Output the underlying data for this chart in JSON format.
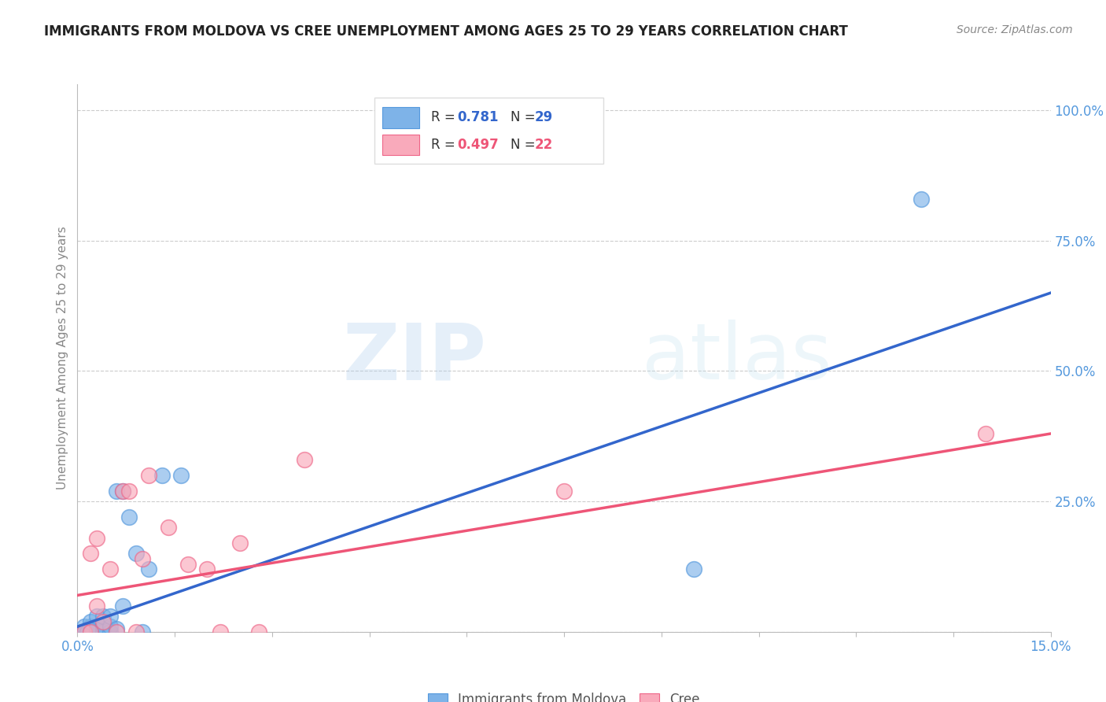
{
  "title": "IMMIGRANTS FROM MOLDOVA VS CREE UNEMPLOYMENT AMONG AGES 25 TO 29 YEARS CORRELATION CHART",
  "source": "Source: ZipAtlas.com",
  "ylabel": "Unemployment Among Ages 25 to 29 years",
  "xlim": [
    0.0,
    0.15
  ],
  "ylim": [
    0.0,
    1.05
  ],
  "xticks": [
    0.0,
    0.015,
    0.03,
    0.045,
    0.06,
    0.075,
    0.09,
    0.105,
    0.12,
    0.135,
    0.15
  ],
  "xtick_labels": [
    "0.0%",
    "",
    "",
    "",
    "",
    "",
    "",
    "",
    "",
    "",
    "15.0%"
  ],
  "yticks": [
    0.0,
    0.25,
    0.5,
    0.75,
    1.0
  ],
  "ytick_labels": [
    "",
    "25.0%",
    "50.0%",
    "75.0%",
    "100.0%"
  ],
  "blue_scatter_x": [
    0.0005,
    0.001,
    0.001,
    0.0015,
    0.002,
    0.002,
    0.002,
    0.003,
    0.003,
    0.003,
    0.003,
    0.004,
    0.004,
    0.004,
    0.005,
    0.005,
    0.005,
    0.006,
    0.006,
    0.007,
    0.007,
    0.008,
    0.009,
    0.01,
    0.011,
    0.013,
    0.016,
    0.095,
    0.13
  ],
  "blue_scatter_y": [
    0.0,
    0.0,
    0.01,
    0.0,
    0.0,
    0.01,
    0.02,
    0.0,
    0.005,
    0.01,
    0.03,
    0.0,
    0.01,
    0.03,
    0.0,
    0.01,
    0.03,
    0.005,
    0.27,
    0.05,
    0.27,
    0.22,
    0.15,
    0.0,
    0.12,
    0.3,
    0.3,
    0.12,
    0.83
  ],
  "pink_scatter_x": [
    0.001,
    0.002,
    0.002,
    0.003,
    0.003,
    0.004,
    0.005,
    0.006,
    0.007,
    0.008,
    0.009,
    0.01,
    0.011,
    0.014,
    0.017,
    0.02,
    0.022,
    0.025,
    0.028,
    0.035,
    0.075,
    0.14
  ],
  "pink_scatter_y": [
    0.0,
    0.0,
    0.15,
    0.05,
    0.18,
    0.02,
    0.12,
    0.0,
    0.27,
    0.27,
    0.0,
    0.14,
    0.3,
    0.2,
    0.13,
    0.12,
    0.0,
    0.17,
    0.0,
    0.33,
    0.27,
    0.38
  ],
  "blue_line_x": [
    0.0,
    0.15
  ],
  "blue_line_y": [
    0.01,
    0.65
  ],
  "pink_line_x": [
    0.0,
    0.15
  ],
  "pink_line_y": [
    0.07,
    0.38
  ],
  "blue_color": "#7EB3E8",
  "blue_edge_color": "#5599DD",
  "pink_color": "#F9AABB",
  "pink_edge_color": "#EE6688",
  "blue_line_color": "#3366CC",
  "pink_line_color": "#EE5577",
  "blue_r": "0.781",
  "blue_n": "29",
  "pink_r": "0.497",
  "pink_n": "22",
  "watermark_zip": "ZIP",
  "watermark_atlas": "atlas",
  "grid_color": "#CCCCCC",
  "axis_tick_color": "#5599DD",
  "ylabel_color": "#888888",
  "title_color": "#222222",
  "source_color": "#888888",
  "background_color": "#FFFFFF",
  "legend_border_color": "#DDDDDD"
}
